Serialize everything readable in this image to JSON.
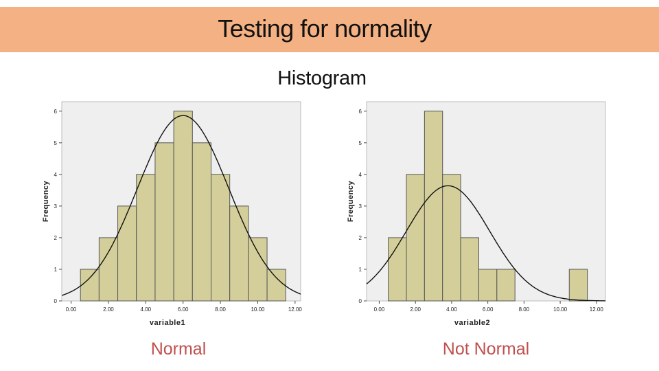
{
  "header": {
    "title": "Testing for normality"
  },
  "subtitle": "Histogram",
  "captions": {
    "left": "Normal",
    "right": "Not Normal"
  },
  "colors": {
    "header_bg": "#f4b183",
    "plot_bg": "#efefef",
    "bar_fill": "#d4cf9a",
    "bar_stroke": "#555555",
    "caption": "#c0504d"
  },
  "chart_data": [
    {
      "type": "bar",
      "title": "",
      "xlabel": "variable1",
      "ylabel": "Frequency",
      "xlim": [
        -0.5,
        12.3
      ],
      "ylim": [
        0,
        6.3
      ],
      "xticks": [
        0,
        2,
        4,
        6,
        8,
        10,
        12
      ],
      "xtick_labels": [
        "0.00",
        "2.00",
        "4.00",
        "6.00",
        "8.00",
        "10.00",
        "12.00"
      ],
      "yticks": [
        0,
        1,
        2,
        3,
        4,
        5,
        6
      ],
      "ytick_labels": [
        "0",
        "1",
        "2",
        "3",
        "4",
        "5",
        "6"
      ],
      "bin_width": 1,
      "bins": [
        {
          "start": 0.5,
          "count": 1
        },
        {
          "start": 1.5,
          "count": 2
        },
        {
          "start": 2.5,
          "count": 3
        },
        {
          "start": 3.5,
          "count": 4
        },
        {
          "start": 4.5,
          "count": 5
        },
        {
          "start": 5.5,
          "count": 6
        },
        {
          "start": 6.5,
          "count": 5
        },
        {
          "start": 7.5,
          "count": 4
        },
        {
          "start": 8.5,
          "count": 3
        },
        {
          "start": 9.5,
          "count": 2
        },
        {
          "start": 10.5,
          "count": 1
        }
      ],
      "normal_curve": {
        "mean": 6.0,
        "sd": 2.45,
        "n": 36
      }
    },
    {
      "type": "bar",
      "title": "",
      "xlabel": "variable2",
      "ylabel": "Frequency",
      "xlim": [
        -0.7,
        12.5
      ],
      "ylim": [
        0,
        6.3
      ],
      "xticks": [
        0,
        2,
        4,
        6,
        8,
        10,
        12
      ],
      "xtick_labels": [
        "0.00",
        "2.00",
        "4.00",
        "6.00",
        "8.00",
        "10.00",
        "12.00"
      ],
      "yticks": [
        0,
        1,
        2,
        3,
        4,
        5,
        6
      ],
      "ytick_labels": [
        "0",
        "1",
        "2",
        "3",
        "4",
        "5",
        "6"
      ],
      "bin_width": 1,
      "bins": [
        {
          "start": 0.5,
          "count": 2
        },
        {
          "start": 1.5,
          "count": 4
        },
        {
          "start": 2.5,
          "count": 6
        },
        {
          "start": 3.5,
          "count": 4
        },
        {
          "start": 4.5,
          "count": 2
        },
        {
          "start": 5.5,
          "count": 1
        },
        {
          "start": 6.5,
          "count": 1
        },
        {
          "start": 10.5,
          "count": 1
        }
      ],
      "normal_curve": {
        "mean": 3.8,
        "sd": 2.3,
        "n": 21
      }
    }
  ]
}
